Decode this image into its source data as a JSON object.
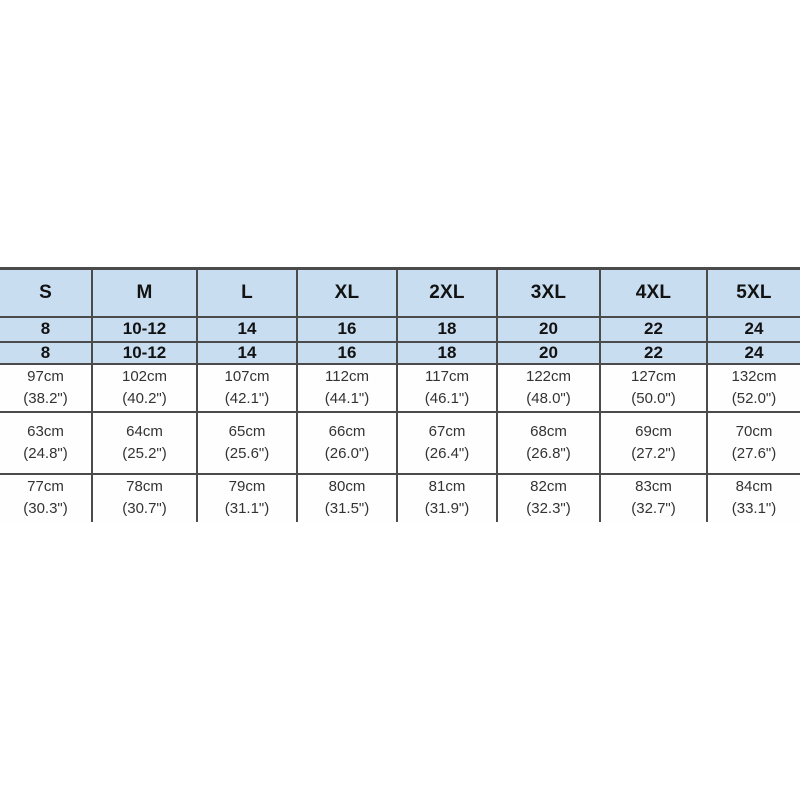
{
  "chart_data": {
    "type": "table",
    "columns": [
      "S",
      "M",
      "L",
      "XL",
      "2XL",
      "3XL",
      "4XL",
      "5XL"
    ],
    "size_rows": [
      [
        "8",
        "10-12",
        "14",
        "16",
        "18",
        "20",
        "22",
        "24"
      ],
      [
        "8",
        "10-12",
        "14",
        "16",
        "18",
        "20",
        "22",
        "24"
      ]
    ],
    "measurement_rows": [
      {
        "cm": [
          "97cm",
          "102cm",
          "107cm",
          "112cm",
          "117cm",
          "122cm",
          "127cm",
          "132cm"
        ],
        "inches": [
          "(38.2\")",
          "(40.2\")",
          "(42.1\")",
          "(44.1\")",
          "(46.1\")",
          "(48.0\")",
          "(50.0\")",
          "(52.0\")"
        ]
      },
      {
        "cm": [
          "63cm",
          "64cm",
          "65cm",
          "66cm",
          "67cm",
          "68cm",
          "69cm",
          "70cm"
        ],
        "inches": [
          "(24.8\")",
          "(25.2\")",
          "(25.6\")",
          "(26.0\")",
          "(26.4\")",
          "(26.8\")",
          "(27.2\")",
          "(27.6\")"
        ]
      },
      {
        "cm": [
          "77cm",
          "78cm",
          "79cm",
          "80cm",
          "81cm",
          "82cm",
          "83cm",
          "84cm"
        ],
        "inches": [
          "(30.3\")",
          "(30.7\")",
          "(31.1\")",
          "(31.5\")",
          "(31.9\")",
          "(32.3\")",
          "(32.7\")",
          "(33.1\")"
        ]
      }
    ]
  },
  "colors": {
    "header_bg": "#c9ddf0",
    "border": "#4b4b4b",
    "bold_text": "#121212",
    "body_text": "#333333",
    "background": "#ffffff"
  }
}
